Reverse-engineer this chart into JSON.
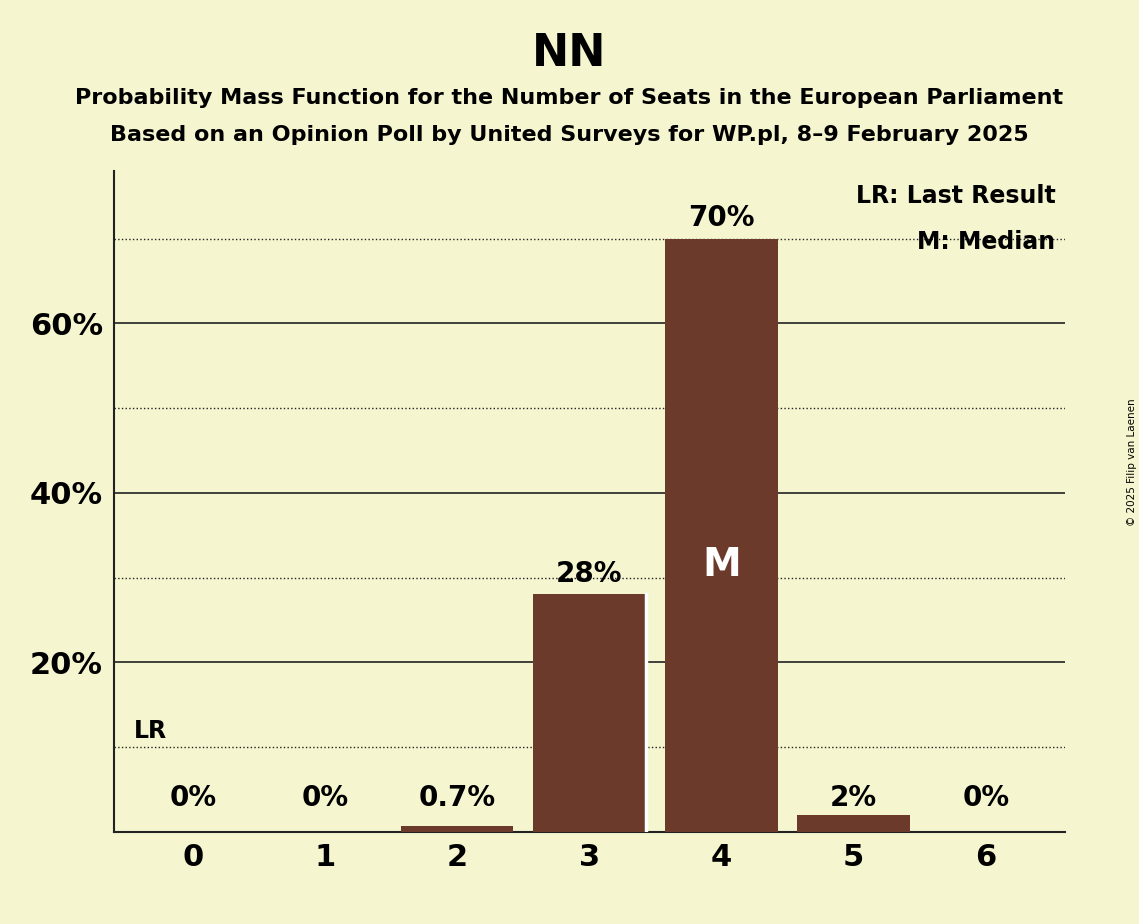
{
  "title": "NN",
  "subtitle1": "Probability Mass Function for the Number of Seats in the European Parliament",
  "subtitle2": "Based on an Opinion Poll by United Surveys for WP.pl, 8–9 February 2025",
  "copyright": "© 2025 Filip van Laenen",
  "categories": [
    0,
    1,
    2,
    3,
    4,
    5,
    6
  ],
  "values": [
    0.0,
    0.0,
    0.007,
    0.28,
    0.7,
    0.02,
    0.0
  ],
  "bar_labels": [
    "0%",
    "0%",
    "0.7%",
    "28%",
    "70%",
    "2%",
    "0%"
  ],
  "bar_color": "#6b3a2a",
  "background_color": "#f5f5d0",
  "lr_value": 0.1,
  "lr_label": "LR",
  "median_bar": 4,
  "median_label": "M",
  "legend_lr": "LR: Last Result",
  "legend_m": "M: Median",
  "solid_lines": [
    0.2,
    0.4,
    0.6
  ],
  "dotted_lines": [
    0.1,
    0.3,
    0.5,
    0.7
  ],
  "yticks": [
    0.2,
    0.4,
    0.6
  ],
  "ytick_labels": [
    "20%",
    "40%",
    "60%"
  ],
  "ylim": [
    0,
    0.78
  ],
  "title_fontsize": 32,
  "subtitle_fontsize": 16,
  "label_fontsize": 17,
  "ytick_fontsize": 22,
  "xtick_fontsize": 22,
  "bar_label_fontsize": 20,
  "legend_fontsize": 17,
  "median_fontsize": 28
}
